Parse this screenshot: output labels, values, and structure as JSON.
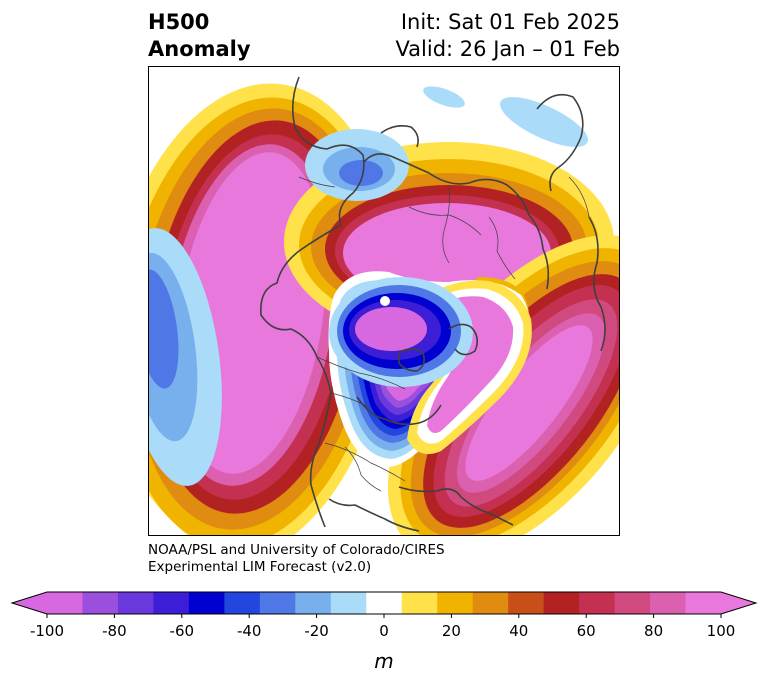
{
  "header": {
    "title_line1": "H500",
    "title_line2": "Anomaly",
    "init_label": "Init: Sat 01 Feb 2025",
    "valid_label": "Valid: 26 Jan – 01 Feb"
  },
  "credit": {
    "line1": "NOAA/PSL and University of Colorado/CIRES",
    "line2": "Experimental LIM Forecast (v2.0)"
  },
  "colorbar": {
    "unit": "m",
    "ticks": [
      "-100",
      "-80",
      "-60",
      "-40",
      "-20",
      "0",
      "20",
      "40",
      "60",
      "80",
      "100"
    ],
    "levels": [
      -100,
      -90,
      -80,
      -70,
      -60,
      -50,
      -40,
      -30,
      -20,
      -10,
      10,
      20,
      30,
      40,
      50,
      60,
      70,
      80,
      90,
      100
    ],
    "colors": [
      "#d868e0",
      "#9b50dd",
      "#6a38dc",
      "#3c1ed6",
      "#0000d0",
      "#2346de",
      "#4f78e6",
      "#78b0ee",
      "#aadcfa",
      "#ffffff",
      "#ffe14a",
      "#f0b400",
      "#e08c10",
      "#c85018",
      "#b22222",
      "#c43050",
      "#d04a80",
      "#dc60b0",
      "#e878dc"
    ],
    "extend_min_color": "#d868e0",
    "extend_max_color": "#e878dc"
  }
}
